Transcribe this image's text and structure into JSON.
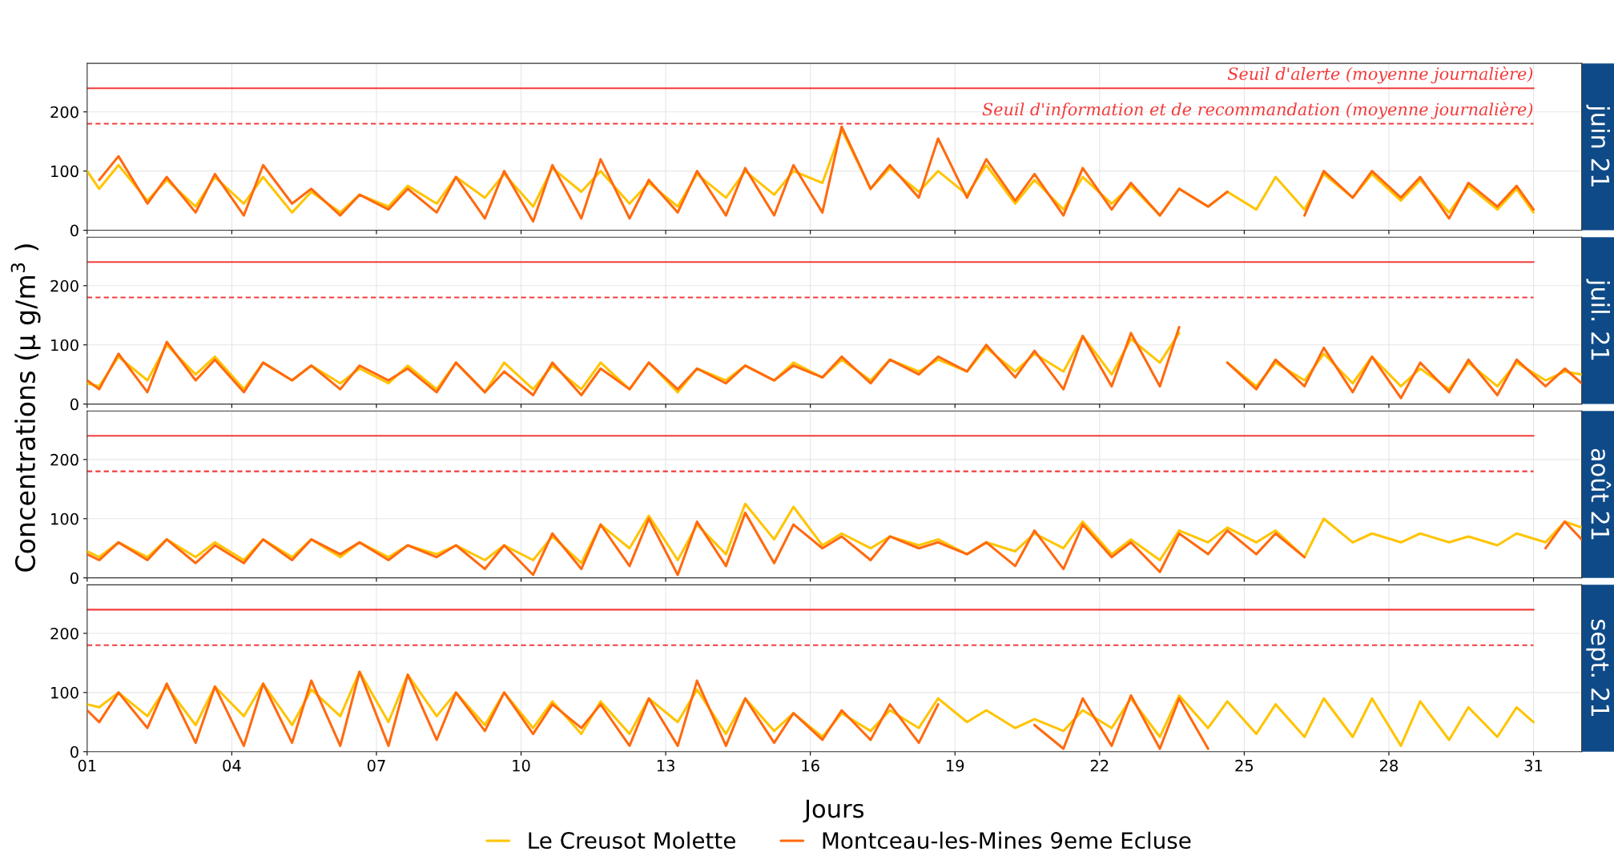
{
  "chart_data": [
    {
      "type": "line",
      "title": "juin 21",
      "ylabel": "Concentrations (µ g/m$^{3}$ )",
      "xlim": [
        1,
        32
      ],
      "ylim": [
        0,
        282
      ],
      "yticks": [
        0,
        100,
        200
      ],
      "xticks": [
        {
          "value": 1,
          "label": null
        },
        {
          "value": 4,
          "label": null
        },
        {
          "value": 7,
          "label": null
        },
        {
          "value": 10,
          "label": null
        },
        {
          "value": 13,
          "label": null
        },
        {
          "value": 16,
          "label": null
        },
        {
          "value": 19,
          "label": null
        },
        {
          "value": 22,
          "label": null
        },
        {
          "value": 25,
          "label": null
        },
        {
          "value": 28,
          "label": null
        },
        {
          "value": 31,
          "label": null
        }
      ],
      "tick_labels": "y",
      "grid": true,
      "line_style": "solid",
      "legend": "bottom",
      "ref_lines": [
        {
          "axis": "y",
          "value": 240,
          "label": "Seuil d'alerte (moyenne journalière)",
          "color": "#f23c3c",
          "line_style": "solid"
        },
        {
          "axis": "y",
          "value": 180,
          "label": "Seuil d'information et de recommandation (moyenne journalière)",
          "color": "#f23c3c",
          "line_style": "dashed"
        }
      ],
      "x": [
        1.0,
        1.25,
        1.65,
        2.25,
        2.65,
        3.25,
        3.65,
        4.25,
        4.65,
        5.25,
        5.65,
        6.25,
        6.65,
        7.25,
        7.65,
        8.25,
        8.65,
        9.25,
        9.65,
        10.25,
        10.65,
        11.25,
        11.65,
        12.25,
        12.65,
        13.25,
        13.65,
        14.25,
        14.65,
        15.25,
        15.65,
        16.25,
        16.65,
        17.25,
        17.65,
        18.25,
        18.65,
        19.25,
        19.65,
        20.25,
        20.65,
        21.25,
        21.65,
        22.25,
        22.65,
        23.25,
        23.65,
        24.25,
        24.65,
        25.25,
        25.65,
        26.25,
        26.65,
        27.25,
        27.65,
        28.25,
        28.65,
        29.25,
        29.65,
        30.25,
        30.65,
        31.0
      ],
      "series": [
        {
          "name": "Le Creusot Molette",
          "color": "#ffc400",
          "values": [
            100,
            70,
            110,
            50,
            85,
            40,
            90,
            45,
            90,
            30,
            65,
            30,
            60,
            40,
            75,
            45,
            90,
            55,
            95,
            40,
            105,
            65,
            100,
            45,
            80,
            40,
            95,
            55,
            100,
            60,
            100,
            80,
            170,
            70,
            105,
            65,
            100,
            60,
            110,
            45,
            85,
            35,
            90,
            45,
            75,
            25,
            70,
            40,
            65,
            35,
            90,
            35,
            95,
            55,
            95,
            50,
            85,
            30,
            75,
            35,
            70,
            30
          ]
        },
        {
          "name": "Montceau-les-Mines 9eme Ecluse",
          "color": "#ff6a10",
          "values": [
            null,
            85,
            125,
            45,
            90,
            30,
            95,
            25,
            110,
            45,
            70,
            25,
            60,
            35,
            70,
            30,
            90,
            20,
            100,
            15,
            110,
            20,
            120,
            20,
            85,
            30,
            100,
            25,
            105,
            25,
            110,
            30,
            175,
            70,
            110,
            55,
            155,
            55,
            120,
            50,
            95,
            25,
            105,
            35,
            80,
            25,
            70,
            40,
            65,
            null,
            null,
            25,
            100,
            55,
            100,
            55,
            90,
            20,
            80,
            40,
            75,
            35
          ]
        }
      ]
    },
    {
      "type": "line",
      "title": "juil. 21",
      "xlim": [
        1,
        32
      ],
      "ylim": [
        0,
        282
      ],
      "yticks": [
        0,
        100,
        200
      ],
      "xticks": [
        {
          "value": 1,
          "label": null
        },
        {
          "value": 4,
          "label": null
        },
        {
          "value": 7,
          "label": null
        },
        {
          "value": 10,
          "label": null
        },
        {
          "value": 13,
          "label": null
        },
        {
          "value": 16,
          "label": null
        },
        {
          "value": 19,
          "label": null
        },
        {
          "value": 22,
          "label": null
        },
        {
          "value": 25,
          "label": null
        },
        {
          "value": 28,
          "label": null
        },
        {
          "value": 31,
          "label": null
        }
      ],
      "tick_labels": "y",
      "grid": true,
      "line_style": "solid",
      "ref_lines": [
        {
          "axis": "y",
          "value": 240,
          "color": "#f23c3c",
          "line_style": "solid"
        },
        {
          "axis": "y",
          "value": 180,
          "color": "#f23c3c",
          "line_style": "dashed"
        }
      ],
      "x": [
        1.0,
        1.25,
        1.65,
        2.25,
        2.65,
        3.25,
        3.65,
        4.25,
        4.65,
        5.25,
        5.65,
        6.25,
        6.65,
        7.25,
        7.65,
        8.25,
        8.65,
        9.25,
        9.65,
        10.25,
        10.65,
        11.25,
        11.65,
        12.25,
        12.65,
        13.25,
        13.65,
        14.25,
        14.65,
        15.25,
        15.65,
        16.25,
        16.65,
        17.25,
        17.65,
        18.25,
        18.65,
        19.25,
        19.65,
        20.25,
        20.65,
        21.25,
        21.65,
        22.25,
        22.65,
        23.25,
        23.65,
        24.25,
        24.65,
        25.25,
        25.65,
        26.25,
        26.65,
        27.25,
        27.65,
        28.25,
        28.65,
        29.25,
        29.65,
        30.25,
        30.65,
        31.25,
        31.65,
        32.0
      ],
      "series": [
        {
          "color": "#ffc400",
          "values": [
            35,
            30,
            80,
            40,
            100,
            50,
            80,
            25,
            70,
            40,
            65,
            35,
            60,
            35,
            65,
            25,
            70,
            20,
            70,
            25,
            65,
            25,
            70,
            25,
            70,
            20,
            60,
            40,
            65,
            40,
            70,
            45,
            75,
            40,
            75,
            55,
            75,
            55,
            95,
            55,
            85,
            55,
            115,
            50,
            110,
            70,
            120,
            null,
            70,
            30,
            70,
            40,
            85,
            35,
            80,
            30,
            60,
            25,
            70,
            30,
            70,
            40,
            55,
            50
          ]
        },
        {
          "color": "#ff6a10",
          "values": [
            40,
            25,
            85,
            20,
            105,
            40,
            75,
            20,
            70,
            40,
            65,
            25,
            65,
            40,
            60,
            20,
            70,
            20,
            55,
            15,
            70,
            15,
            60,
            25,
            70,
            25,
            60,
            35,
            65,
            40,
            65,
            45,
            80,
            35,
            75,
            50,
            80,
            55,
            100,
            45,
            90,
            25,
            115,
            30,
            120,
            30,
            130,
            null,
            70,
            25,
            75,
            30,
            95,
            20,
            80,
            10,
            70,
            20,
            75,
            15,
            75,
            30,
            60,
            35
          ]
        }
      ]
    },
    {
      "type": "line",
      "title": "août 21",
      "xlim": [
        1,
        32
      ],
      "ylim": [
        0,
        282
      ],
      "yticks": [
        0,
        100,
        200
      ],
      "xticks": [
        {
          "value": 1,
          "label": null
        },
        {
          "value": 4,
          "label": null
        },
        {
          "value": 7,
          "label": null
        },
        {
          "value": 10,
          "label": null
        },
        {
          "value": 13,
          "label": null
        },
        {
          "value": 16,
          "label": null
        },
        {
          "value": 19,
          "label": null
        },
        {
          "value": 22,
          "label": null
        },
        {
          "value": 25,
          "label": null
        },
        {
          "value": 28,
          "label": null
        },
        {
          "value": 31,
          "label": null
        }
      ],
      "tick_labels": "y",
      "grid": true,
      "line_style": "solid",
      "ref_lines": [
        {
          "axis": "y",
          "value": 240,
          "color": "#f23c3c",
          "line_style": "solid"
        },
        {
          "axis": "y",
          "value": 180,
          "color": "#f23c3c",
          "line_style": "dashed"
        }
      ],
      "x": [
        1.0,
        1.25,
        1.65,
        2.25,
        2.65,
        3.25,
        3.65,
        4.25,
        4.65,
        5.25,
        5.65,
        6.25,
        6.65,
        7.25,
        7.65,
        8.25,
        8.65,
        9.25,
        9.65,
        10.25,
        10.65,
        11.25,
        11.65,
        12.25,
        12.65,
        13.25,
        13.65,
        14.25,
        14.65,
        15.25,
        15.65,
        16.25,
        16.65,
        17.25,
        17.65,
        18.25,
        18.65,
        19.25,
        19.65,
        20.25,
        20.65,
        21.25,
        21.65,
        22.25,
        22.65,
        23.25,
        23.65,
        24.25,
        24.65,
        25.25,
        25.65,
        26.25,
        26.65,
        27.25,
        27.65,
        28.25,
        28.65,
        29.25,
        29.65,
        30.25,
        30.65,
        31.25,
        31.65,
        32.0
      ],
      "series": [
        {
          "color": "#ffc400",
          "values": [
            45,
            35,
            60,
            35,
            65,
            35,
            60,
            30,
            65,
            35,
            65,
            35,
            60,
            35,
            55,
            40,
            55,
            30,
            55,
            30,
            70,
            25,
            90,
            50,
            105,
            30,
            90,
            40,
            125,
            65,
            120,
            55,
            75,
            50,
            70,
            55,
            65,
            40,
            60,
            45,
            75,
            50,
            95,
            40,
            65,
            30,
            80,
            60,
            85,
            60,
            80,
            35,
            100,
            60,
            75,
            60,
            75,
            60,
            70,
            55,
            75,
            60,
            95,
            85
          ]
        },
        {
          "color": "#ff6a10",
          "values": [
            40,
            30,
            60,
            30,
            65,
            25,
            55,
            25,
            65,
            30,
            65,
            40,
            60,
            30,
            55,
            35,
            55,
            15,
            55,
            5,
            75,
            15,
            90,
            20,
            100,
            5,
            95,
            20,
            110,
            25,
            90,
            50,
            70,
            30,
            70,
            50,
            60,
            40,
            60,
            20,
            80,
            15,
            90,
            35,
            60,
            10,
            75,
            40,
            80,
            40,
            75,
            35,
            null,
            null,
            null,
            null,
            null,
            null,
            null,
            null,
            null,
            50,
            95,
            65
          ]
        }
      ]
    },
    {
      "type": "line",
      "title": "sept. 21",
      "xlabel": "Jours",
      "xlim": [
        1,
        32
      ],
      "ylim": [
        0,
        282
      ],
      "yticks": [
        0,
        100,
        200
      ],
      "xticks": [
        {
          "value": 1,
          "label": "01"
        },
        {
          "value": 4,
          "label": "04"
        },
        {
          "value": 7,
          "label": "07"
        },
        {
          "value": 10,
          "label": "10"
        },
        {
          "value": 13,
          "label": "13"
        },
        {
          "value": 16,
          "label": "16"
        },
        {
          "value": 19,
          "label": "19"
        },
        {
          "value": 22,
          "label": "22"
        },
        {
          "value": 25,
          "label": "25"
        },
        {
          "value": 28,
          "label": "28"
        },
        {
          "value": 31,
          "label": "31"
        }
      ],
      "grid": true,
      "line_style": "solid",
      "ref_lines": [
        {
          "axis": "y",
          "value": 240,
          "color": "#f23c3c",
          "line_style": "solid"
        },
        {
          "axis": "y",
          "value": 180,
          "color": "#f23c3c",
          "line_style": "dashed"
        }
      ],
      "x": [
        1.0,
        1.25,
        1.65,
        2.25,
        2.65,
        3.25,
        3.65,
        4.25,
        4.65,
        5.25,
        5.65,
        6.25,
        6.65,
        7.25,
        7.65,
        8.25,
        8.65,
        9.25,
        9.65,
        10.25,
        10.65,
        11.25,
        11.65,
        12.25,
        12.65,
        13.25,
        13.65,
        14.25,
        14.65,
        15.25,
        15.65,
        16.25,
        16.65,
        17.25,
        17.65,
        18.25,
        18.65,
        19.25,
        19.65,
        20.25,
        20.65,
        21.25,
        21.65,
        22.25,
        22.65,
        23.25,
        23.65,
        24.25,
        24.65,
        25.25,
        25.65,
        26.25,
        26.65,
        27.25,
        27.65,
        28.25,
        28.65,
        29.25,
        29.65,
        30.25,
        30.65,
        31.0
      ],
      "series": [
        {
          "color": "#ffc400",
          "values": [
            80,
            75,
            100,
            60,
            110,
            45,
            110,
            60,
            115,
            45,
            105,
            60,
            135,
            50,
            130,
            60,
            100,
            45,
            100,
            40,
            85,
            30,
            85,
            30,
            90,
            50,
            105,
            30,
            90,
            35,
            65,
            25,
            65,
            35,
            70,
            40,
            90,
            50,
            70,
            40,
            55,
            35,
            70,
            40,
            90,
            25,
            95,
            40,
            85,
            30,
            80,
            25,
            90,
            25,
            90,
            10,
            85,
            20,
            75,
            25,
            75,
            50
          ]
        },
        {
          "color": "#ff6a10",
          "values": [
            70,
            50,
            100,
            40,
            115,
            15,
            110,
            10,
            115,
            15,
            120,
            10,
            135,
            10,
            130,
            20,
            100,
            35,
            100,
            30,
            80,
            40,
            80,
            10,
            90,
            10,
            120,
            10,
            90,
            15,
            65,
            20,
            70,
            20,
            80,
            15,
            80,
            null,
            null,
            null,
            45,
            5,
            90,
            10,
            95,
            5,
            90,
            5,
            null,
            null,
            null,
            null,
            null,
            null,
            null,
            null,
            null,
            null,
            null,
            null,
            null,
            null
          ]
        }
      ]
    }
  ]
}
